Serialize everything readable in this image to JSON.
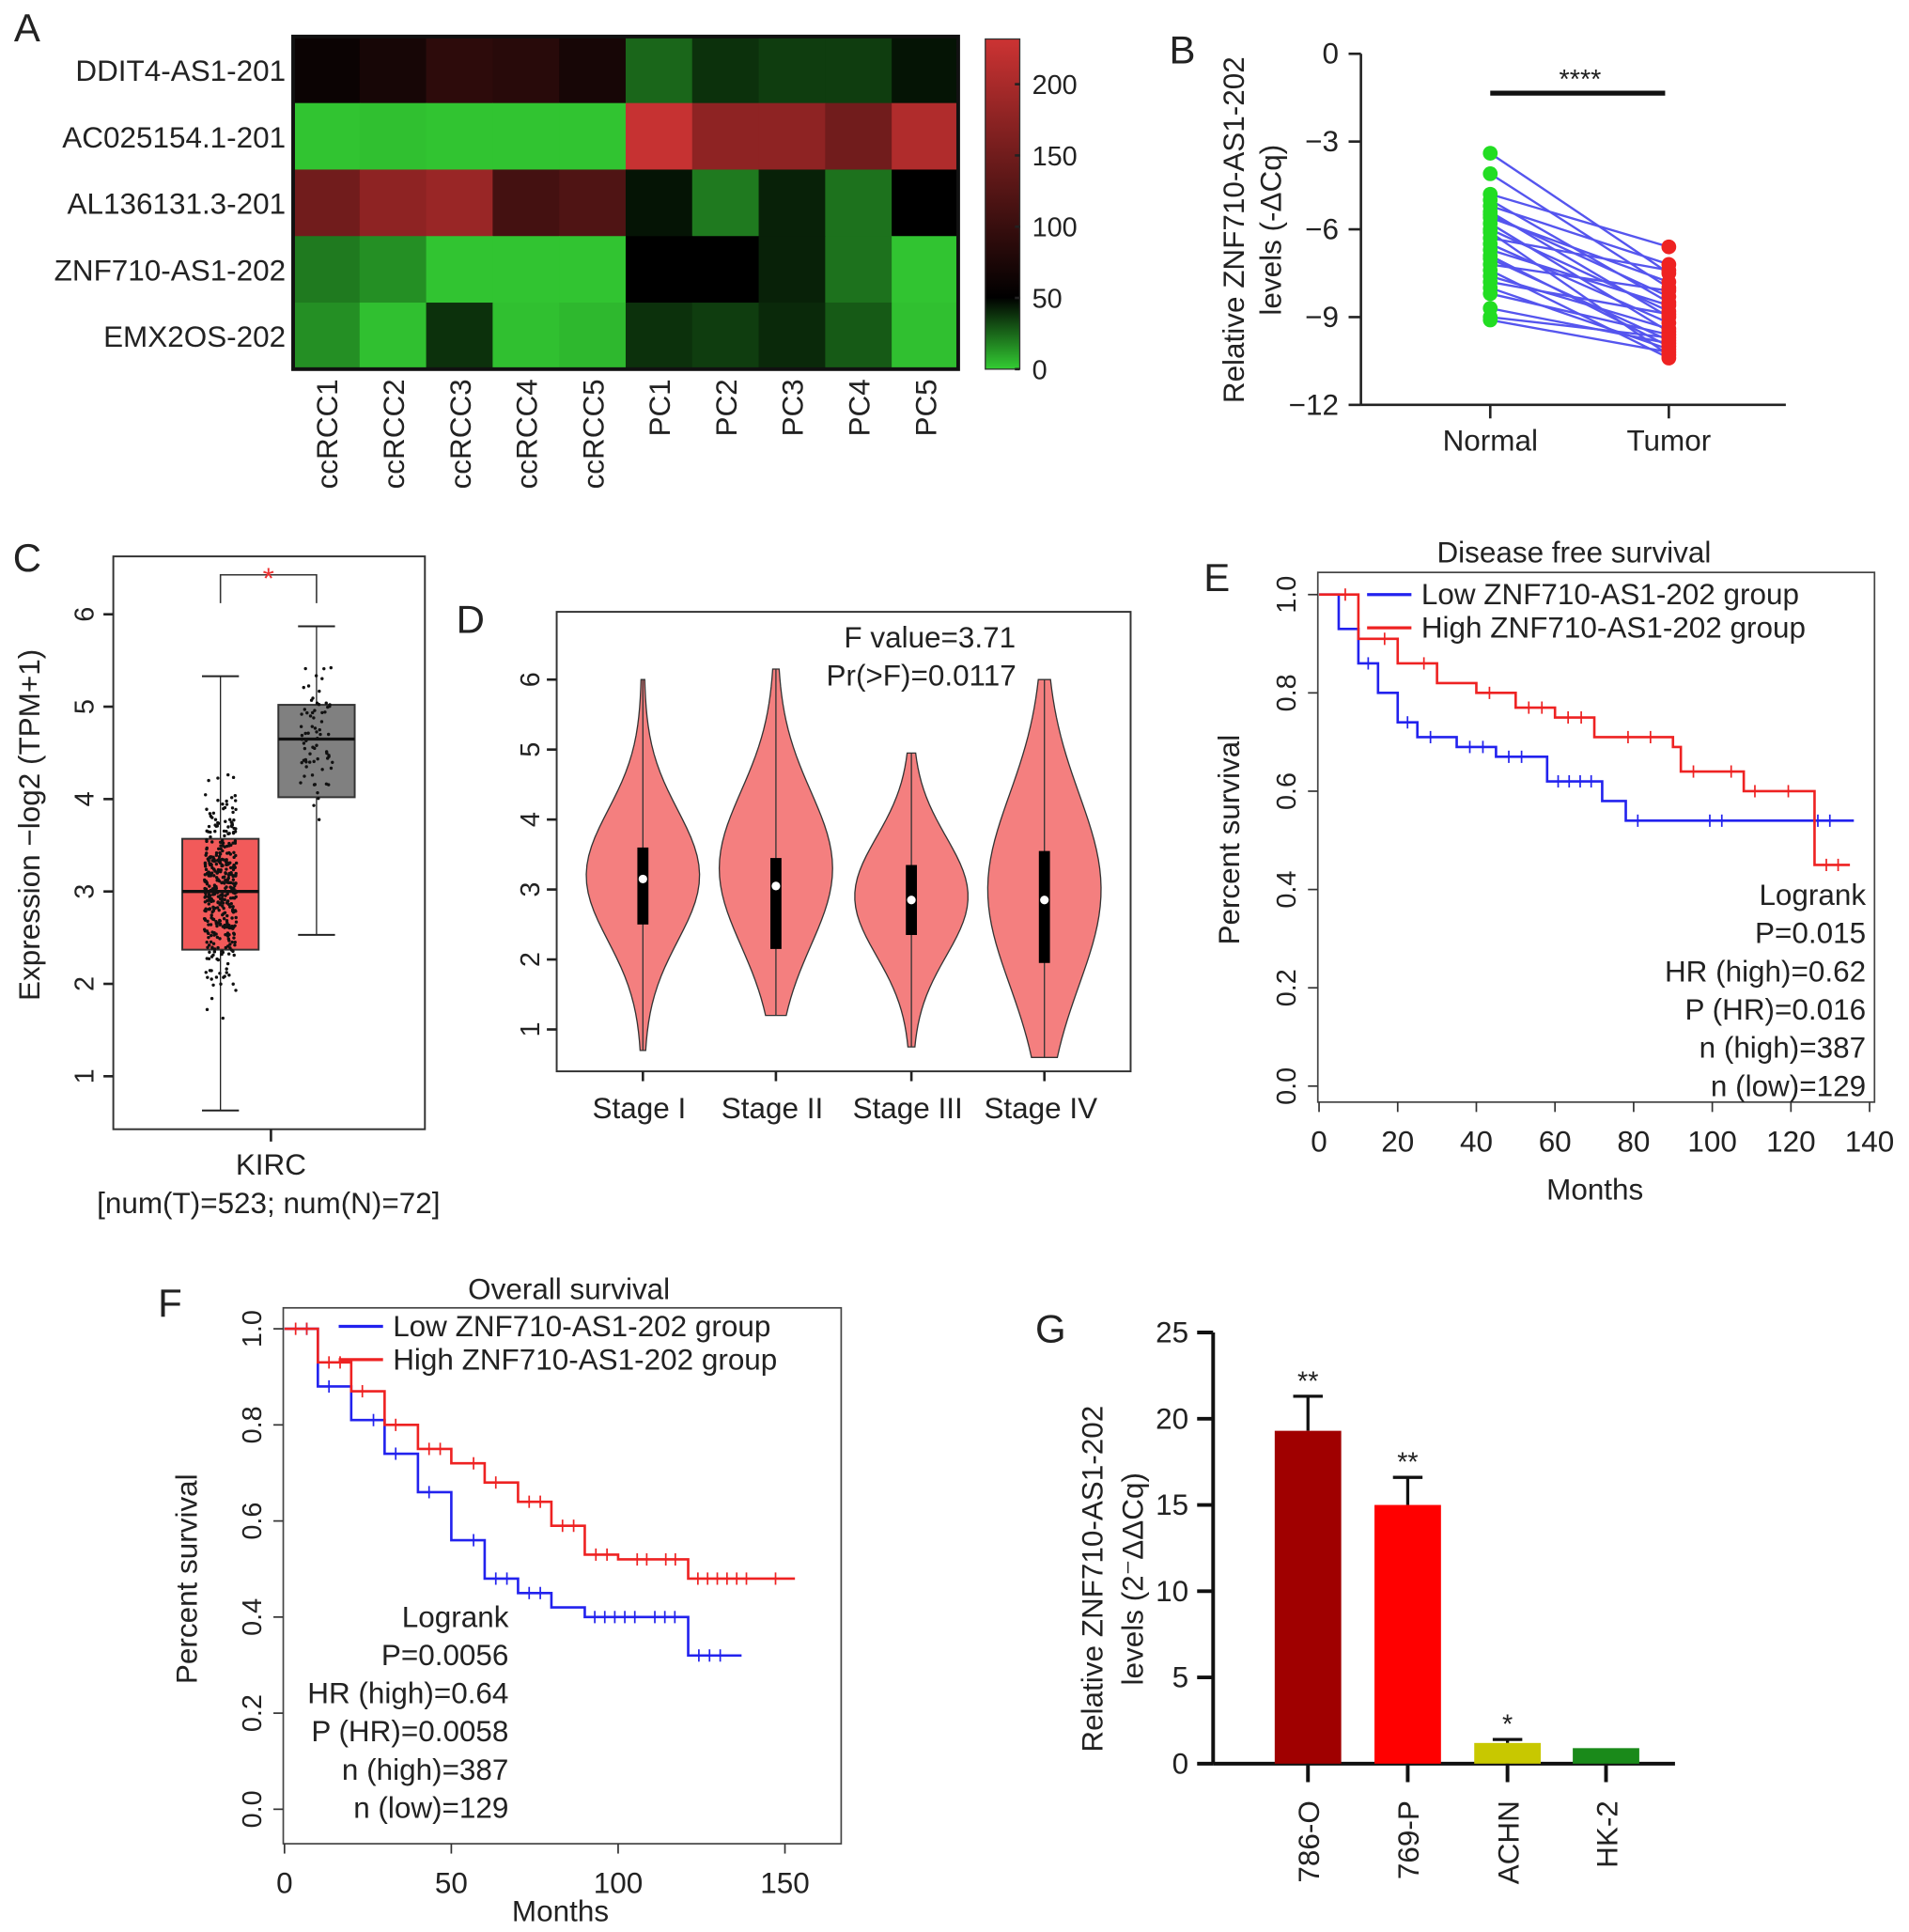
{
  "panel_letters": [
    "A",
    "B",
    "C",
    "D",
    "E",
    "F",
    "G"
  ],
  "chart_data": [
    {
      "panel": "A",
      "type": "heatmap",
      "rows": [
        "DDIT4-AS1-201",
        "AC025154.1-201",
        "AL136131.3-201",
        "ZNF710-AS1-202",
        "EMX2OS-202"
      ],
      "columns": [
        "ccRCC1",
        "ccRCC2",
        "ccRCC3",
        "ccRCC4",
        "ccRCC5",
        "PC1",
        "PC2",
        "PC3",
        "PC4",
        "PC5"
      ],
      "values": [
        [
          60,
          70,
          90,
          85,
          70,
          25,
          38,
          35,
          35,
          45
        ],
        [
          2,
          3,
          2,
          2,
          2,
          225,
          175,
          175,
          150,
          205
        ],
        [
          150,
          175,
          185,
          110,
          120,
          45,
          20,
          42,
          22,
          50
        ],
        [
          20,
          15,
          2,
          2,
          2,
          50,
          50,
          42,
          22,
          2
        ],
        [
          15,
          3,
          38,
          3,
          5,
          38,
          35,
          40,
          28,
          3
        ]
      ],
      "colorbar": {
        "ticks": [
          0,
          50,
          100,
          150,
          200
        ],
        "range": [
          0,
          230
        ],
        "low_color": "#33cc33",
        "mid_color": "#000000",
        "high_color": "#cc3333"
      }
    },
    {
      "panel": "B",
      "type": "line",
      "subtype": "paired-dot",
      "ylabel_line1": "Relative ZNF710-AS1-202",
      "ylabel_line2": "levels (-ΔCq)",
      "categories": [
        "Normal",
        "Tumor"
      ],
      "yticks": [
        "0",
        "−3",
        "−6",
        "−9",
        "−12"
      ],
      "ylim": [
        -12,
        0
      ],
      "significance": "****",
      "normal": [
        -3.4,
        -4.1,
        -4.8,
        -5.0,
        -5.2,
        -5.4,
        -5.5,
        -5.6,
        -5.8,
        -6.0,
        -6.1,
        -6.3,
        -6.5,
        -6.7,
        -6.9,
        -7.0,
        -7.2,
        -7.4,
        -7.6,
        -7.8,
        -8.0,
        -8.2,
        -8.7,
        -9.0,
        -9.1
      ],
      "tumor": [
        -7.5,
        -8.0,
        -6.6,
        -8.5,
        -7.2,
        -9.0,
        -8.3,
        -7.8,
        -9.5,
        -8.8,
        -10.3,
        -7.4,
        -9.2,
        -8.6,
        -10.0,
        -9.8,
        -8.1,
        -10.4,
        -9.4,
        -8.9,
        -10.1,
        -9.6,
        -9.9,
        -9.7,
        -10.2
      ],
      "colors": {
        "normal": "#22dd22",
        "tumor": "#ee2222",
        "line": "#5555ee"
      }
    },
    {
      "panel": "C",
      "type": "box",
      "ylabel": "Expression −log2 (TPM+1)",
      "yticks": [
        1,
        2,
        3,
        4,
        5,
        6
      ],
      "ylim": [
        0.4,
        6.6
      ],
      "xlabel": "KIRC",
      "xlabel2": "[num(T)=523; num(N)=72]",
      "significance": "*",
      "boxes": [
        {
          "group": "T",
          "color": "#f25a5a",
          "min": 0.63,
          "q1": 2.37,
          "median": 3.0,
          "q3": 3.57,
          "max": 5.33,
          "n": 523
        },
        {
          "group": "N",
          "color": "#808080",
          "min": 2.53,
          "q1": 4.02,
          "median": 4.65,
          "q3": 5.02,
          "max": 5.87,
          "n": 72
        }
      ]
    },
    {
      "panel": "D",
      "type": "violin",
      "annotation1": "F value=3.71",
      "annotation2": "Pr(>F)=0.0117",
      "categories": [
        "Stage I",
        "Stage II",
        "Stage III",
        "Stage IV"
      ],
      "yticks": [
        1,
        2,
        3,
        4,
        5,
        6
      ],
      "ylim": [
        0.4,
        6.6
      ],
      "color": "#f47f7f",
      "violins": [
        {
          "min": 0.7,
          "q1": 2.5,
          "median": 3.15,
          "q3": 3.6,
          "max": 6.0,
          "mode": 3.2
        },
        {
          "min": 1.2,
          "q1": 2.15,
          "median": 3.05,
          "q3": 3.45,
          "max": 6.15,
          "mode": 3.3
        },
        {
          "min": 0.75,
          "q1": 2.35,
          "median": 2.85,
          "q3": 3.35,
          "max": 4.95,
          "mode": 2.9
        },
        {
          "min": 0.6,
          "q1": 1.95,
          "median": 2.85,
          "q3": 3.55,
          "max": 6.0,
          "mode": 3.0
        }
      ]
    },
    {
      "panel": "E",
      "type": "line",
      "subtype": "kaplan-meier",
      "title": "Disease free survival",
      "xlabel": "Months",
      "ylabel": "Percent survival",
      "xticks": [
        0,
        20,
        40,
        60,
        80,
        100,
        120,
        140
      ],
      "yticks": [
        "0.0",
        "0.2",
        "0.4",
        "0.6",
        "0.8",
        "1.0"
      ],
      "xlim": [
        0,
        140
      ],
      "ylim": [
        0,
        1
      ],
      "series": [
        {
          "name": "Low ZNF710-AS1-202 group",
          "color": "#2222ee",
          "points": [
            [
              0,
              1
            ],
            [
              5,
              0.93
            ],
            [
              10,
              0.86
            ],
            [
              15,
              0.8
            ],
            [
              20,
              0.74
            ],
            [
              25,
              0.71
            ],
            [
              35,
              0.69
            ],
            [
              45,
              0.67
            ],
            [
              58,
              0.62
            ],
            [
              72,
              0.58
            ],
            [
              78,
              0.54
            ],
            [
              136,
              0.54
            ]
          ]
        },
        {
          "name": "High ZNF710-AS1-202 group",
          "color": "#ee2222",
          "points": [
            [
              0,
              1
            ],
            [
              10,
              0.91
            ],
            [
              20,
              0.86
            ],
            [
              30,
              0.82
            ],
            [
              40,
              0.8
            ],
            [
              50,
              0.77
            ],
            [
              60,
              0.75
            ],
            [
              70,
              0.71
            ],
            [
              90,
              0.69
            ],
            [
              92,
              0.64
            ],
            [
              108,
              0.6
            ],
            [
              125,
              0.6
            ],
            [
              126,
              0.45
            ],
            [
              135,
              0.45
            ]
          ]
        }
      ],
      "stats": [
        "Logrank",
        "P=0.015",
        "HR (high)=0.62",
        "P (HR)=0.016",
        "n (high)=387",
        "n (low)=129"
      ],
      "legend_position": "top"
    },
    {
      "panel": "F",
      "type": "line",
      "subtype": "kaplan-meier",
      "title": "Overall survival",
      "xlabel": "Months",
      "ylabel": "Percent survival",
      "xticks": [
        0,
        50,
        100,
        150
      ],
      "yticks": [
        "0.0",
        "0.2",
        "0.4",
        "0.6",
        "0.8",
        "1.0"
      ],
      "xlim": [
        0,
        158
      ],
      "ylim": [
        0,
        1
      ],
      "series": [
        {
          "name": "Low ZNF710-AS1-202 group",
          "color": "#2222ee",
          "points": [
            [
              0,
              1
            ],
            [
              10,
              0.88
            ],
            [
              20,
              0.81
            ],
            [
              30,
              0.74
            ],
            [
              40,
              0.66
            ],
            [
              50,
              0.56
            ],
            [
              60,
              0.48
            ],
            [
              70,
              0.45
            ],
            [
              80,
              0.42
            ],
            [
              90,
              0.4
            ],
            [
              120,
              0.4
            ],
            [
              121,
              0.32
            ],
            [
              137,
              0.32
            ]
          ]
        },
        {
          "name": "High ZNF710-AS1-202 group",
          "color": "#ee2222",
          "points": [
            [
              0,
              1
            ],
            [
              10,
              0.93
            ],
            [
              20,
              0.87
            ],
            [
              30,
              0.8
            ],
            [
              40,
              0.75
            ],
            [
              50,
              0.72
            ],
            [
              60,
              0.68
            ],
            [
              70,
              0.64
            ],
            [
              80,
              0.59
            ],
            [
              90,
              0.53
            ],
            [
              100,
              0.52
            ],
            [
              120,
              0.52
            ],
            [
              121,
              0.48
            ],
            [
              153,
              0.48
            ]
          ]
        }
      ],
      "stats": [
        "Logrank",
        "P=0.0056",
        "HR (high)=0.64",
        "P (HR)=0.0058",
        "n (high)=387",
        "n (low)=129"
      ],
      "legend_position": "top"
    },
    {
      "panel": "G",
      "type": "bar",
      "ylabel_line1": "Relative ZNF710-AS1-202",
      "ylabel_line2": "levels (2⁻ΔΔCq)",
      "categories": [
        "786-O",
        "769-P",
        "ACHN",
        "HK-2"
      ],
      "values": [
        19.3,
        15.0,
        1.2,
        0.9
      ],
      "errors": [
        2.0,
        1.6,
        0.2,
        0
      ],
      "significance": [
        "**",
        "**",
        "*",
        ""
      ],
      "colors": [
        "#a00000",
        "#ff0000",
        "#c8c800",
        "#1a8a1a"
      ],
      "yticks": [
        0,
        5,
        10,
        15,
        20,
        25
      ],
      "ylim": [
        0,
        25
      ]
    }
  ]
}
